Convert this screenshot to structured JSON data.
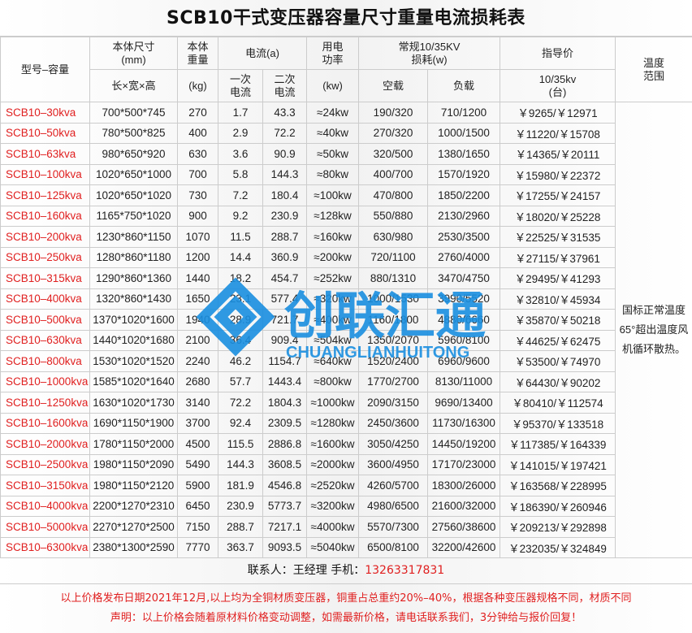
{
  "title": "SCB10干式变压器容量尺寸重量电流损耗表",
  "headers": {
    "model": "型号–容量",
    "size": "本体尺寸\n(mm)",
    "size_sub": "长×宽×高",
    "weight": "本体\n重量",
    "weight_sub": "(kg)",
    "current": "电流(a)",
    "primary": "一次\n电流",
    "secondary": "二次\n电流",
    "power": "用电\n功率",
    "power_sub": "(kw)",
    "loss": "常规10/35KV\n损耗(w)",
    "no_load": "空载",
    "load": "负载",
    "price": "指导价",
    "price_sub": "10/35kv\n(台)",
    "temp": "温度\n范围"
  },
  "temp_note": "国标正常温度65°超出温度风机循环散热。",
  "rows": [
    [
      "SCB10–30kva",
      "700*500*745",
      "270",
      "1.7",
      "43.3",
      "≈24kw",
      "190/320",
      "710/1200",
      "￥9265/￥12971"
    ],
    [
      "SCB10–50kva",
      "780*500*825",
      "400",
      "2.9",
      "72.2",
      "≈40kw",
      "270/320",
      "1000/1500",
      "￥11220/￥15708"
    ],
    [
      "SCB10–63kva",
      "980*650*920",
      "630",
      "3.6",
      "90.9",
      "≈50kw",
      "320/500",
      "1380/1650",
      "￥14365/￥20111"
    ],
    [
      "SCB10–100kva",
      "1020*650*1000",
      "700",
      "5.8",
      "144.3",
      "≈80kw",
      "400/700",
      "1570/1920",
      "￥15980/￥22372"
    ],
    [
      "SCB10–125kva",
      "1020*650*1020",
      "730",
      "7.2",
      "180.4",
      "≈100kw",
      "470/800",
      "1850/2200",
      "￥17255/￥24157"
    ],
    [
      "SCB10–160kva",
      "1165*750*1020",
      "900",
      "9.2",
      "230.9",
      "≈128kw",
      "550/880",
      "2130/2960",
      "￥18020/￥25228"
    ],
    [
      "SCB10–200kva",
      "1230*860*1150",
      "1070",
      "11.5",
      "288.7",
      "≈160kw",
      "630/980",
      "2530/3500",
      "￥22525/￥31535"
    ],
    [
      "SCB10–250kva",
      "1280*860*1180",
      "1200",
      "14.4",
      "360.9",
      "≈200kw",
      "720/1100",
      "2760/4000",
      "￥27115/￥37961"
    ],
    [
      "SCB10–315kva",
      "1290*860*1360",
      "1440",
      "18.2",
      "454.7",
      "≈252kw",
      "880/1310",
      "3470/4750",
      "￥29495/￥41293"
    ],
    [
      "SCB10–400kva",
      "1320*860*1430",
      "1650",
      "23.1",
      "577.4",
      "≈320kw",
      "1000/1530",
      "3990/5520",
      "￥32810/￥45934"
    ],
    [
      "SCB10–500kva",
      "1370*1020*1600",
      "1940",
      "28.9",
      "721.7",
      "≈400kw",
      "1160/1800",
      "4880/6660",
      "￥35870/￥50218"
    ],
    [
      "SCB10–630kva",
      "1440*1020*1680",
      "2100",
      "36.4",
      "909.4",
      "≈504kw",
      "1350/2070",
      "5960/8100",
      "￥44625/￥62475"
    ],
    [
      "SCB10–800kva",
      "1530*1020*1520",
      "2240",
      "46.2",
      "1154.7",
      "≈640kw",
      "1520/2400",
      "6960/9600",
      "￥53500/￥74970"
    ],
    [
      "SCB10–1000kva",
      "1585*1020*1640",
      "2680",
      "57.7",
      "1443.4",
      "≈800kw",
      "1770/2700",
      "8130/11000",
      "￥64430/￥90202"
    ],
    [
      "SCB10–1250kva",
      "1630*1020*1730",
      "3140",
      "72.2",
      "1804.3",
      "≈1000kw",
      "2090/3150",
      "9690/13400",
      "￥80410/￥112574"
    ],
    [
      "SCB10–1600kva",
      "1690*1150*1900",
      "3700",
      "92.4",
      "2309.5",
      "≈1280kw",
      "2450/3600",
      "11730/16300",
      "￥95370/￥133518"
    ],
    [
      "SCB10–2000kva",
      "1780*1150*2000",
      "4500",
      "115.5",
      "2886.8",
      "≈1600kw",
      "3050/4250",
      "14450/19200",
      "￥117385/￥164339"
    ],
    [
      "SCB10–2500kva",
      "1980*1150*2090",
      "5490",
      "144.3",
      "3608.5",
      "≈2000kw",
      "3600/4950",
      "17170/23000",
      "￥141015/￥197421"
    ],
    [
      "SCB10–3150kva",
      "1980*1150*2120",
      "5900",
      "181.9",
      "4546.8",
      "≈2520kw",
      "4260/5700",
      "18300/26000",
      "￥163568/￥228995"
    ],
    [
      "SCB10–4000kva",
      "2200*1270*2310",
      "6450",
      "230.9",
      "5773.7",
      "≈3200kw",
      "4980/6500",
      "21600/32000",
      "￥186390/￥260946"
    ],
    [
      "SCB10–5000kva",
      "2270*1270*2500",
      "7150",
      "288.7",
      "7217.1",
      "≈4000kw",
      "5570/7300",
      "27560/38600",
      "￥209213/￥292898"
    ],
    [
      "SCB10–6300kva",
      "2380*1300*2590",
      "7770",
      "363.7",
      "9093.5",
      "≈5040kw",
      "6500/8100",
      "32200/42600",
      "￥232035/￥324849"
    ]
  ],
  "contact": {
    "label": "联系人：王经理  手机：",
    "phone": "13263317831"
  },
  "notes": [
    "以上价格发布日期2021年12月,以上均为全铜材质变压器，铜重占总重约20%–40%，根据各种变压器规格不同，材质不同",
    "声明：以上价格会随着原材料价格变动调整，如需最新价格，请电话联系我们，3分钟给与报价回复！"
  ],
  "watermark": {
    "cn": "创联汇通",
    "en": "CHUANGLIANHUITONG",
    "color": "#1a8fe0"
  },
  "colors": {
    "model": "#e02020",
    "note": "#e02020"
  }
}
